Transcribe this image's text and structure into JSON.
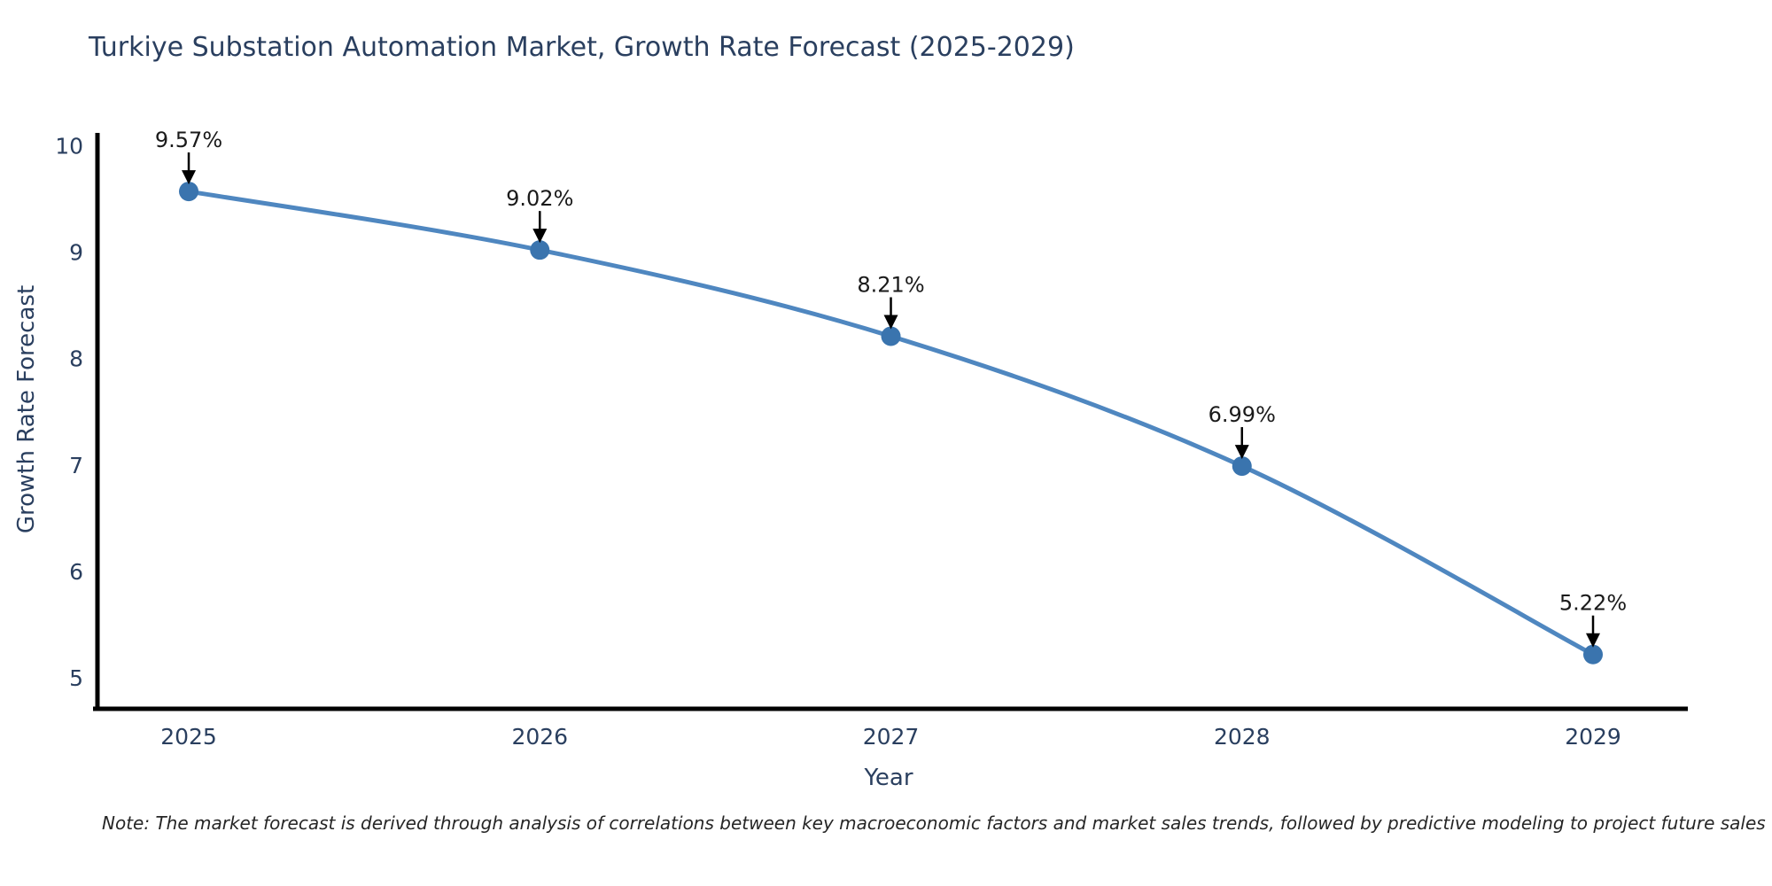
{
  "chart_data": {
    "type": "line",
    "title": "Turkiye Substation Automation Market, Growth Rate Forecast (2025-2029)",
    "xlabel": "Year",
    "ylabel": "Growth Rate Forecast",
    "x": [
      2025,
      2026,
      2027,
      2028,
      2029
    ],
    "values": [
      9.57,
      9.02,
      8.21,
      6.99,
      5.22
    ],
    "point_labels": [
      "9.57%",
      "9.02%",
      "8.21%",
      "6.99%",
      "5.22%"
    ],
    "yticks": [
      5,
      6,
      7,
      8,
      9,
      10
    ],
    "xticks": [
      2025,
      2026,
      2027,
      2028,
      2029
    ],
    "xlim": [
      2024.74,
      2029.27
    ],
    "ylim": [
      4.71,
      10.12
    ],
    "grid": false,
    "legend": false,
    "line_shape": "spline",
    "colors": {
      "line": "#4f87c0",
      "marker": "#3a74ae",
      "axis": "#000000",
      "tick_text": "#2a3f5f",
      "annotation_text": "#1a1a1a",
      "arrow": "#000000"
    }
  },
  "note": "Note: The market forecast is derived through analysis of correlations between key macroeconomic factors and market sales trends, followed by predictive modeling to project future sales"
}
